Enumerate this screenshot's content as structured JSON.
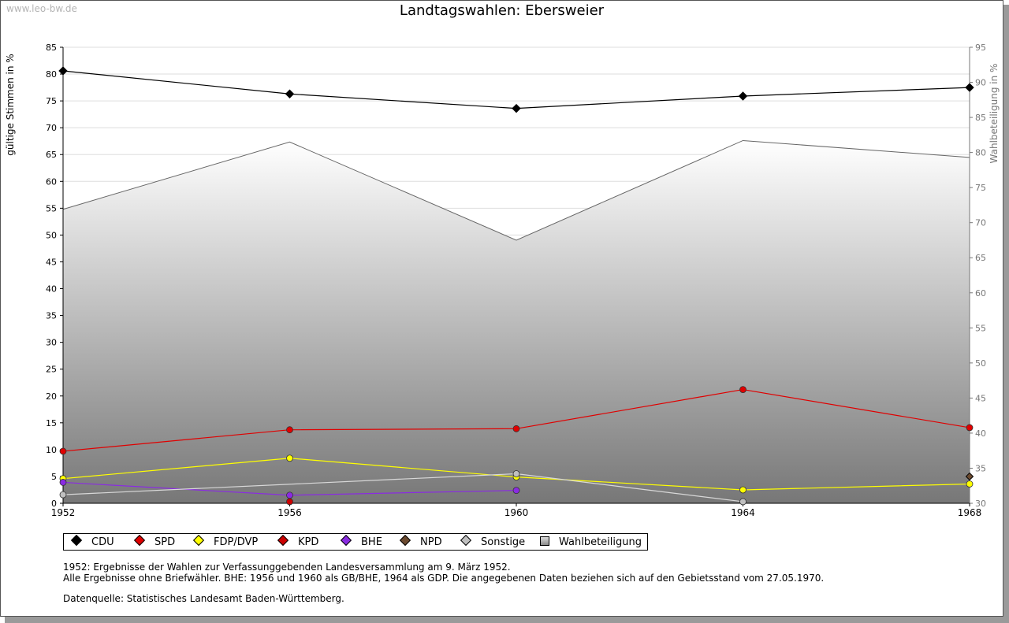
{
  "watermark": "www.leo-bw.de",
  "chart_data": {
    "type": "line",
    "title": "Landtagswahlen: Ebersweier",
    "ylabel": "gültige Stimmen in %",
    "y2label": "Wahlbeteiligung in %",
    "x": [
      "1952",
      "1956",
      "1960",
      "1964",
      "1968"
    ],
    "ylim": [
      0,
      85
    ],
    "y2lim": [
      30,
      95
    ],
    "yticks": [
      "0",
      "5",
      "10",
      "15",
      "20",
      "25",
      "30",
      "35",
      "40",
      "45",
      "50",
      "55",
      "60",
      "65",
      "70",
      "75",
      "80",
      "85"
    ],
    "y2ticks": [
      "30",
      "35",
      "40",
      "45",
      "50",
      "55",
      "60",
      "65",
      "70",
      "75",
      "80",
      "85",
      "90",
      "95"
    ],
    "grid": true,
    "series": [
      {
        "name": "CDU",
        "color": "#000000",
        "axis": "left",
        "values": [
          80.6,
          76.3,
          73.6,
          75.9,
          77.5
        ]
      },
      {
        "name": "SPD",
        "color": "#e00000",
        "axis": "left",
        "values": [
          9.7,
          13.7,
          13.9,
          21.2,
          14.1
        ]
      },
      {
        "name": "FDP/DVP",
        "color": "#ffff00",
        "axis": "left",
        "values": [
          4.6,
          8.4,
          4.9,
          2.5,
          3.6
        ]
      },
      {
        "name": "KPD",
        "color": "#cc0000",
        "axis": "left",
        "values": [
          null,
          0.3,
          null,
          null,
          null
        ]
      },
      {
        "name": "BHE",
        "color": "#8a2be2",
        "axis": "left",
        "values": [
          3.9,
          1.5,
          2.4,
          null,
          null
        ]
      },
      {
        "name": "NPD",
        "color": "#6b4a2f",
        "axis": "left",
        "values": [
          null,
          null,
          null,
          null,
          5.0
        ]
      },
      {
        "name": "Sonstige",
        "color": "#c0c0c0",
        "axis": "left",
        "values": [
          1.6,
          null,
          5.5,
          0.3,
          null
        ]
      },
      {
        "name": "Wahlbeteiligung",
        "color": "#777777",
        "axis": "right",
        "type": "area",
        "values": [
          71.9,
          81.5,
          67.5,
          81.7,
          79.3
        ]
      }
    ],
    "legend_position": "bottom"
  },
  "notes": {
    "line1": "1952: Ergebnisse der Wahlen zur Verfassunggebenden Landesversammlung am 9. März 1952.",
    "line2": "Alle Ergebnisse ohne Briefwähler. BHE: 1956 und 1960 als GB/BHE, 1964 als GDP. Die angegebenen Daten beziehen sich auf den Gebietsstand vom 27.05.1970.",
    "line3": "Datenquelle: Statistisches Landesamt Baden-Württemberg."
  }
}
